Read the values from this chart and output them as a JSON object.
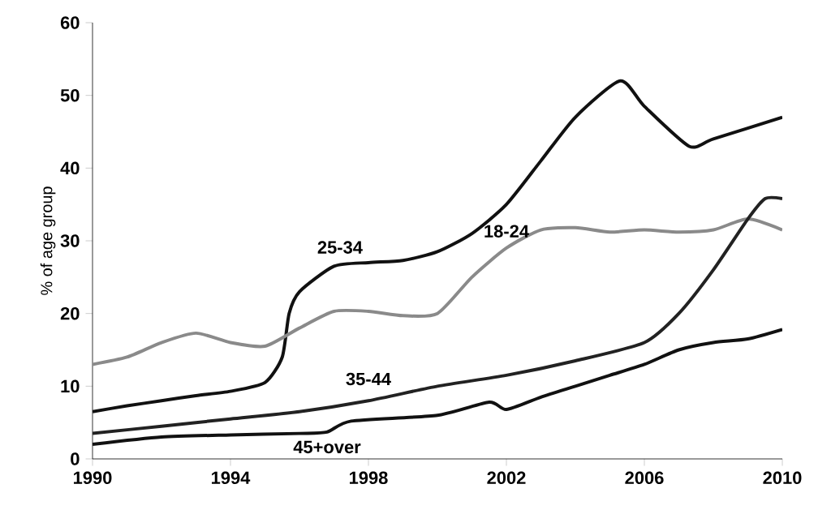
{
  "chart_data": {
    "type": "line",
    "ylabel": "% of age group",
    "xlim": [
      1990,
      2010
    ],
    "ylim": [
      0,
      60
    ],
    "xticks": [
      1990,
      1994,
      1998,
      2002,
      2006,
      2010
    ],
    "yticks": [
      0,
      10,
      20,
      30,
      40,
      50,
      60
    ],
    "grid": false,
    "legend": false,
    "marker": "none",
    "line_style": "solid",
    "series": [
      {
        "name": "25-34",
        "color": "#111111",
        "x": [
          1990,
          1991,
          1992,
          1993,
          1994,
          1995,
          1995.5,
          1995.7,
          1996,
          1997,
          1998,
          1999,
          2000,
          2001,
          2002,
          2003,
          2004,
          2005.3,
          2006,
          2007.3,
          2008,
          2010
        ],
        "values": [
          6.5,
          7.3,
          8,
          8.7,
          9.3,
          10.5,
          14,
          20,
          23,
          26.5,
          27,
          27.3,
          28.5,
          31,
          35,
          41,
          47,
          52,
          48.5,
          43,
          44,
          47
        ]
      },
      {
        "name": "18-24",
        "color": "#8a8a8a",
        "x": [
          1990,
          1991,
          1992,
          1993,
          1994,
          1995,
          1996,
          1997,
          1998,
          1999,
          2000,
          2001,
          2002,
          2003,
          2004,
          2005,
          2006,
          2007,
          2008,
          2009,
          2010
        ],
        "values": [
          13,
          14,
          16,
          17.3,
          16,
          15.5,
          18,
          20.3,
          20.3,
          19.7,
          20,
          25,
          29,
          31.5,
          31.8,
          31.2,
          31.5,
          31.2,
          31.5,
          33,
          31.5
        ]
      },
      {
        "name": "35-44",
        "color": "#222222",
        "x": [
          1990,
          1992,
          1994,
          1996,
          1998,
          2000,
          2002,
          2004,
          2006,
          2007,
          2008,
          2009,
          2009.5,
          2010
        ],
        "values": [
          3.5,
          4.5,
          5.5,
          6.5,
          8,
          10,
          11.5,
          13.5,
          16,
          20,
          26,
          33,
          35.8,
          35.8
        ]
      },
      {
        "name": "45+over",
        "color": "#111111",
        "x": [
          1990,
          1992,
          1994,
          1996,
          1996.8,
          1997.5,
          2000,
          2001.5,
          2002,
          2003,
          2004,
          2005,
          2006,
          2007,
          2008,
          2009,
          2010
        ],
        "values": [
          2,
          3,
          3.3,
          3.5,
          3.7,
          5.2,
          6,
          7.8,
          6.8,
          8.5,
          10,
          11.5,
          13,
          15,
          16,
          16.5,
          17.8
        ]
      }
    ]
  }
}
